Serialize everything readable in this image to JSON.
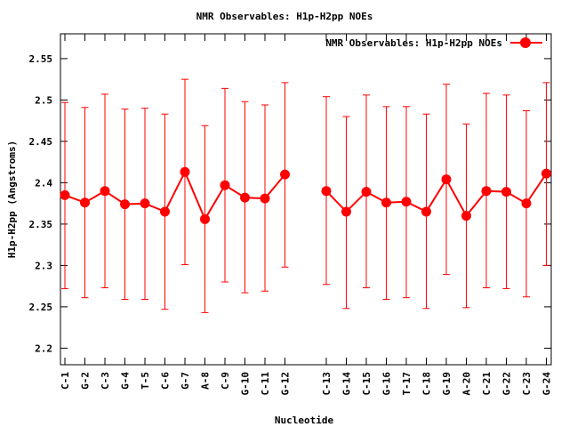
{
  "chart_data": {
    "type": "line",
    "title": "NMR Observables: H1p-H2pp NOEs",
    "xlabel": "Nucleotide",
    "ylabel": "H1p-H2pp (Angstroms)",
    "ylim": [
      2.18,
      2.58
    ],
    "yticks": [
      2.2,
      2.25,
      2.3,
      2.35,
      2.4,
      2.45,
      2.5,
      2.55
    ],
    "ytick_labels": [
      "2.2",
      "2.25",
      "2.3",
      "2.35",
      "2.4",
      "2.45",
      "2.5",
      "2.55"
    ],
    "grid": false,
    "legend_position": "top-right",
    "color": "#ff0000",
    "categories": [
      "C-1",
      "G-2",
      "C-3",
      "G-4",
      "T-5",
      "C-6",
      "G-7",
      "A-8",
      "C-9",
      "G-10",
      "C-11",
      "G-12",
      "C-13",
      "G-14",
      "C-15",
      "G-16",
      "T-17",
      "C-18",
      "G-19",
      "A-20",
      "C-21",
      "G-22",
      "C-23",
      "G-24"
    ],
    "series": [
      {
        "name": "NMR Observables: H1p-H2pp NOEs",
        "values": [
          2.385,
          2.376,
          2.39,
          2.374,
          2.375,
          2.365,
          2.413,
          2.356,
          2.397,
          2.382,
          2.381,
          2.41,
          2.39,
          2.365,
          2.389,
          2.376,
          2.377,
          2.365,
          2.404,
          2.36,
          2.39,
          2.389,
          2.375,
          2.411
        ],
        "error_low": [
          2.272,
          2.261,
          2.273,
          2.259,
          2.259,
          2.247,
          2.301,
          2.243,
          2.28,
          2.267,
          2.269,
          2.298,
          2.277,
          2.248,
          2.273,
          2.259,
          2.261,
          2.248,
          2.289,
          2.249,
          2.273,
          2.272,
          2.262,
          2.3
        ],
        "error_high": [
          2.497,
          2.491,
          2.507,
          2.489,
          2.49,
          2.483,
          2.525,
          2.469,
          2.514,
          2.498,
          2.494,
          2.521,
          2.504,
          2.48,
          2.506,
          2.492,
          2.492,
          2.483,
          2.519,
          2.471,
          2.508,
          2.506,
          2.487,
          2.521
        ]
      }
    ]
  }
}
